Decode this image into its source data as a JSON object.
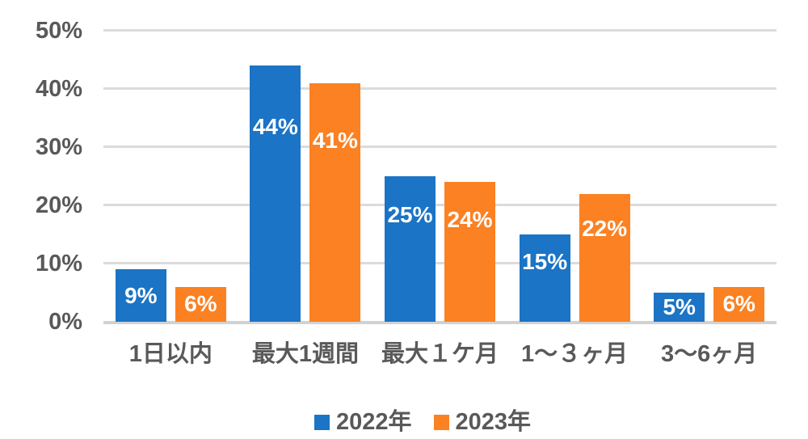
{
  "chart_data": {
    "type": "bar",
    "title": "",
    "categories": [
      "1日以内",
      "最大1週間",
      "最大１ケ月",
      "1〜３ヶ月",
      "3〜6ヶ月"
    ],
    "series": [
      {
        "name": "2022年",
        "color": "#1B74C5",
        "values": [
          9,
          44,
          25,
          15,
          5
        ],
        "labels": [
          "9%",
          "44%",
          "25%",
          "15%",
          "5%"
        ]
      },
      {
        "name": "2023年",
        "color": "#FB8122",
        "values": [
          6,
          41,
          24,
          22,
          6
        ],
        "labels": [
          "6%",
          "41%",
          "24%",
          "22%",
          "6%"
        ]
      }
    ],
    "y_axis": {
      "min": 0,
      "max": 50,
      "tick_step": 10,
      "tick_labels": [
        "0%",
        "10%",
        "20%",
        "30%",
        "40%",
        "50%"
      ]
    },
    "grid": true,
    "legend_position": "bottom",
    "colors": {
      "grid": "#DBDBDB",
      "axis_line": "#D2D2D2",
      "axis_text": "#595959",
      "bar_value_text": "#FFFFFF",
      "background": "#FFFFFF"
    }
  }
}
